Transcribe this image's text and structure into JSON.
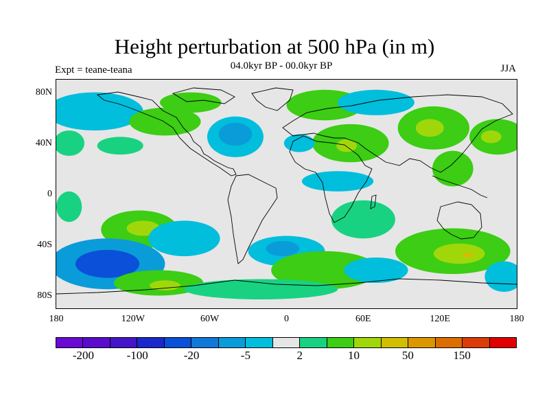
{
  "title": "Height perturbation at 500 hPa (in m)",
  "experiment_label": "Expt = teane-teana",
  "period_label": "04.0kyr BP - 00.0kyr BP",
  "season_label": "JJA",
  "colors": [
    "#6a0ad2",
    "#5a0ccc",
    "#4414c8",
    "#1a28cc",
    "#0a50d8",
    "#1178d8",
    "#0a9cd8",
    "#00bedc",
    "#e6e6e6",
    "#18d282",
    "#3ccd14",
    "#a0d70a",
    "#d2be00",
    "#dc9600",
    "#dc6e00",
    "#dc3c0a",
    "#e00000"
  ],
  "colorbar_labels": [
    {
      "box": 1,
      "text": "-200"
    },
    {
      "box": 3,
      "text": "-100"
    },
    {
      "box": 5,
      "text": "-20"
    },
    {
      "box": 7,
      "text": "-5"
    },
    {
      "box": 9,
      "text": "2"
    },
    {
      "box": 11,
      "text": "10"
    },
    {
      "box": 13,
      "text": "50"
    },
    {
      "box": 15,
      "text": "150"
    }
  ],
  "x_ticks": [
    {
      "lon": -180,
      "label": "180"
    },
    {
      "lon": -120,
      "label": "120W"
    },
    {
      "lon": -60,
      "label": "60W"
    },
    {
      "lon": 0,
      "label": "0"
    },
    {
      "lon": 60,
      "label": "60E"
    },
    {
      "lon": 120,
      "label": "120E"
    },
    {
      "lon": 180,
      "label": "180"
    }
  ],
  "y_ticks": [
    {
      "lat": 80,
      "label": "80N"
    },
    {
      "lat": 40,
      "label": "40N"
    },
    {
      "lat": 0,
      "label": "0"
    },
    {
      "lat": -40,
      "label": "40S"
    },
    {
      "lat": -80,
      "label": "80S"
    }
  ],
  "map_data": {
    "type": "filled-contour",
    "projection": "cylindrical-equidistant",
    "lon_range": [
      -180,
      180
    ],
    "lat_range": [
      -90,
      90
    ],
    "features": [
      {
        "lon": -150,
        "lat": 65,
        "rx": 38,
        "ry": 15,
        "level": 7
      },
      {
        "lon": -95,
        "lat": 57,
        "rx": 28,
        "ry": 11,
        "level": 10
      },
      {
        "lon": -75,
        "lat": 72,
        "rx": 24,
        "ry": 8,
        "level": 10
      },
      {
        "lon": -40,
        "lat": 45,
        "rx": 22,
        "ry": 16,
        "level": 7
      },
      {
        "lon": -40,
        "lat": 47,
        "rx": 13,
        "ry": 9,
        "level": 6
      },
      {
        "lon": -130,
        "lat": 38,
        "rx": 18,
        "ry": 7,
        "level": 9
      },
      {
        "lon": 30,
        "lat": 70,
        "rx": 30,
        "ry": 12,
        "level": 10
      },
      {
        "lon": 50,
        "lat": 40,
        "rx": 30,
        "ry": 15,
        "level": 10
      },
      {
        "lon": 47,
        "lat": 38,
        "rx": 8,
        "ry": 5,
        "level": 11
      },
      {
        "lon": 10,
        "lat": 40,
        "rx": 12,
        "ry": 7,
        "level": 7
      },
      {
        "lon": 70,
        "lat": 72,
        "rx": 30,
        "ry": 10,
        "level": 7
      },
      {
        "lon": 115,
        "lat": 52,
        "rx": 28,
        "ry": 17,
        "level": 10
      },
      {
        "lon": 112,
        "lat": 52,
        "rx": 11,
        "ry": 7,
        "level": 11
      },
      {
        "lon": 165,
        "lat": 45,
        "rx": 22,
        "ry": 14,
        "level": 10
      },
      {
        "lon": 160,
        "lat": 45,
        "rx": 8,
        "ry": 5,
        "level": 11
      },
      {
        "lon": 130,
        "lat": 20,
        "rx": 16,
        "ry": 14,
        "level": 10
      },
      {
        "lon": 40,
        "lat": 10,
        "rx": 28,
        "ry": 8,
        "level": 7
      },
      {
        "lon": -170,
        "lat": 40,
        "rx": 12,
        "ry": 10,
        "level": 9
      },
      {
        "lon": -115,
        "lat": -28,
        "rx": 30,
        "ry": 15,
        "level": 10
      },
      {
        "lon": -112,
        "lat": -27,
        "rx": 13,
        "ry": 6,
        "level": 11
      },
      {
        "lon": -80,
        "lat": -35,
        "rx": 28,
        "ry": 14,
        "level": 7
      },
      {
        "lon": -140,
        "lat": -55,
        "rx": 45,
        "ry": 20,
        "level": 6
      },
      {
        "lon": -140,
        "lat": -55,
        "rx": 25,
        "ry": 11,
        "level": 4
      },
      {
        "lon": -100,
        "lat": -70,
        "rx": 35,
        "ry": 10,
        "level": 10
      },
      {
        "lon": -95,
        "lat": -72,
        "rx": 12,
        "ry": 4,
        "level": 11
      },
      {
        "lon": 0,
        "lat": -45,
        "rx": 30,
        "ry": 12,
        "level": 7
      },
      {
        "lon": -3,
        "lat": -43,
        "rx": 13,
        "ry": 6,
        "level": 6
      },
      {
        "lon": 30,
        "lat": -60,
        "rx": 42,
        "ry": 15,
        "level": 10
      },
      {
        "lon": 130,
        "lat": -45,
        "rx": 45,
        "ry": 18,
        "level": 10
      },
      {
        "lon": 135,
        "lat": -47,
        "rx": 20,
        "ry": 8,
        "level": 11
      },
      {
        "lon": 142,
        "lat": -48,
        "rx": 4,
        "ry": 2,
        "level": 12
      },
      {
        "lon": 70,
        "lat": -60,
        "rx": 25,
        "ry": 10,
        "level": 7
      },
      {
        "lon": 170,
        "lat": -65,
        "rx": 15,
        "ry": 12,
        "level": 7
      },
      {
        "lon": -20,
        "lat": -75,
        "rx": 60,
        "ry": 8,
        "level": 9
      },
      {
        "lon": 60,
        "lat": -20,
        "rx": 25,
        "ry": 15,
        "level": 9
      },
      {
        "lon": -170,
        "lat": -10,
        "rx": 10,
        "ry": 12,
        "level": 9
      }
    ]
  }
}
